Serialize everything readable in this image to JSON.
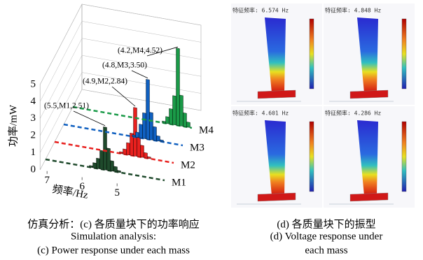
{
  "chart_data": {
    "type": "bar3d",
    "ylabel": "功率/mW",
    "xlabel": "频率/Hz",
    "ylim": [
      0,
      5
    ],
    "yticks": [
      0,
      1,
      2,
      3,
      4,
      5
    ],
    "xlim": [
      7.2,
      3.8
    ],
    "xticks": [
      7,
      6,
      5
    ],
    "series": [
      {
        "name": "M1",
        "color": "#1f4a2c",
        "x": [
          5.9,
          5.8,
          5.7,
          5.6,
          5.5,
          5.4,
          5.3,
          5.2,
          5.1
        ],
        "values": [
          0.1,
          0.3,
          0.6,
          1.1,
          2.51,
          1.3,
          0.6,
          0.3,
          0.1
        ]
      },
      {
        "name": "M2",
        "color": "#e8201e",
        "x": [
          5.3,
          5.2,
          5.1,
          5.0,
          4.9,
          4.8,
          4.7,
          4.6,
          4.5
        ],
        "values": [
          0.1,
          0.3,
          0.7,
          1.3,
          2.84,
          1.4,
          0.7,
          0.3,
          0.1
        ]
      },
      {
        "name": "M3",
        "color": "#1060c0",
        "x": [
          5.2,
          5.1,
          5.0,
          4.9,
          4.8,
          4.7,
          4.6,
          4.5,
          4.4
        ],
        "values": [
          0.1,
          0.3,
          0.8,
          1.5,
          3.5,
          1.6,
          0.8,
          0.3,
          0.1
        ]
      },
      {
        "name": "M4",
        "color": "#1a9a48",
        "x": [
          4.6,
          4.5,
          4.4,
          4.3,
          4.2,
          4.1,
          4.0,
          3.9
        ],
        "values": [
          0.1,
          0.4,
          0.9,
          1.7,
          4.52,
          1.8,
          0.8,
          0.3
        ]
      }
    ],
    "annotations": [
      "(5.5,M1,2.51)",
      "(4.9,M2,2.84)",
      "(4.8,M3,3.50)",
      "(4.2,M4,4.52)"
    ]
  },
  "panels": [
    {
      "title": "特征频率: 6.574 Hz"
    },
    {
      "title": "特征频率: 4.848 Hz"
    },
    {
      "title": "特征频率: 4.601 Hz"
    },
    {
      "title": "特征频率: 4.286 Hz"
    }
  ],
  "captions": {
    "left": [
      "仿真分析：(c) 各质量块下的功率响应",
      "Simulation analysis:",
      "(c) Power response under each mass"
    ],
    "right": [
      "(d) 各质量块下的振型",
      "(d) Voltage response under",
      "each mass"
    ]
  }
}
